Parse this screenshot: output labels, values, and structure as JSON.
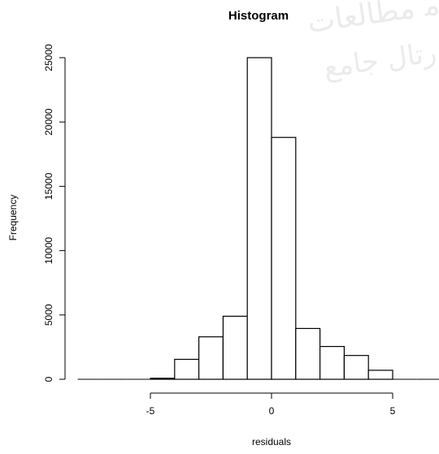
{
  "chart_data": {
    "type": "bar",
    "title": "Histogram",
    "xlabel": "residuals",
    "ylabel": "Frequency",
    "bins": [
      {
        "from": -8,
        "to": -7,
        "count": 0
      },
      {
        "from": -7,
        "to": -6,
        "count": 0
      },
      {
        "from": -6,
        "to": -5,
        "count": 0
      },
      {
        "from": -5,
        "to": -4,
        "count": 80
      },
      {
        "from": -4,
        "to": -3,
        "count": 1550
      },
      {
        "from": -3,
        "to": -2,
        "count": 3300
      },
      {
        "from": -2,
        "to": -1,
        "count": 4900
      },
      {
        "from": -1,
        "to": 0,
        "count": 25000
      },
      {
        "from": 0,
        "to": 1,
        "count": 18800
      },
      {
        "from": 1,
        "to": 2,
        "count": 3950
      },
      {
        "from": 2,
        "to": 3,
        "count": 2550
      },
      {
        "from": 3,
        "to": 4,
        "count": 1850
      },
      {
        "from": 4,
        "to": 5,
        "count": 700
      },
      {
        "from": 5,
        "to": 6,
        "count": 0
      },
      {
        "from": 6,
        "to": 7,
        "count": 0
      }
    ],
    "xlim": [
      -8,
      7
    ],
    "ylim": [
      0,
      25000
    ],
    "x_ticks": [
      -5,
      0,
      5
    ],
    "x_tick_labels": [
      "-5",
      "0",
      "5"
    ],
    "y_ticks": [
      0,
      5000,
      10000,
      15000,
      20000,
      25000
    ],
    "y_tick_labels": [
      "0",
      "5000",
      "10000",
      "15000",
      "20000",
      "25000"
    ],
    "grid": false,
    "legend": "none"
  }
}
